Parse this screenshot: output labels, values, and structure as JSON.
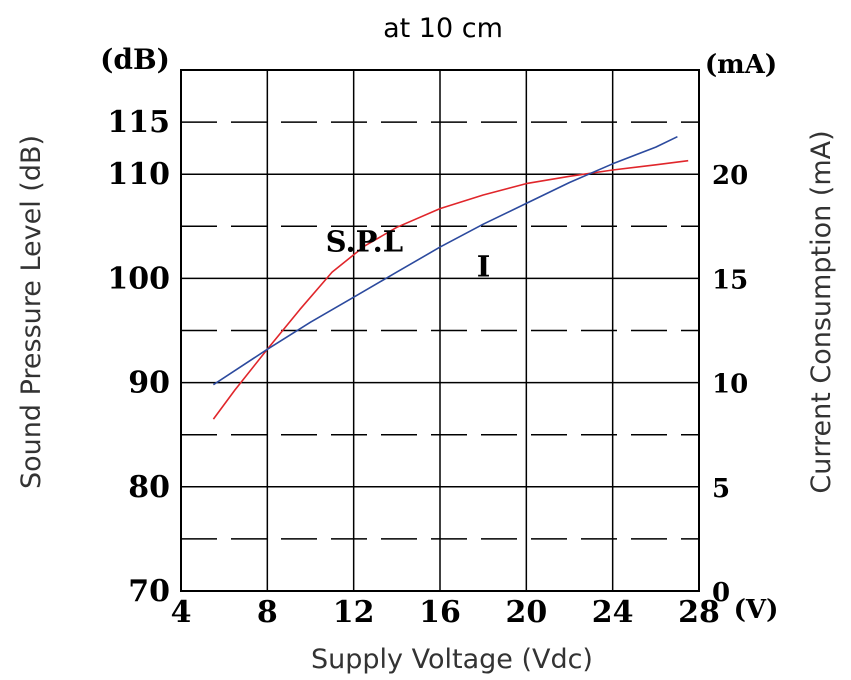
{
  "chart_data": {
    "type": "line",
    "title": "at 10 cm",
    "xlabel": "Supply Voltage (Vdc)",
    "ylabel_left": "Sound Pressure Level (dB)",
    "ylabel_right": "Current Consumption (mA)",
    "unit_left": "(dB)",
    "unit_right": "(mA)",
    "unit_x": "(V)",
    "xlim": [
      4,
      28
    ],
    "xticks": [
      "4",
      "8",
      "12",
      "16",
      "20",
      "24",
      "28"
    ],
    "ylim_left": [
      70,
      120
    ],
    "yticks_left": [
      "70",
      "80",
      "90",
      "100",
      "110",
      "115"
    ],
    "ylim_right": [
      0,
      25
    ],
    "yticks_right": [
      "0",
      "5",
      "10",
      "15",
      "20"
    ],
    "grid": true,
    "series": [
      {
        "name": "S.P.L",
        "axis": "left",
        "color": "#e0262b",
        "x": [
          5.5,
          6.5,
          8,
          9.5,
          11,
          12.5,
          14,
          16,
          18,
          20,
          22,
          24,
          26,
          27.5
        ],
        "y": [
          86.5,
          89.3,
          93.2,
          97.0,
          100.6,
          103.1,
          104.9,
          106.7,
          108.0,
          109.1,
          109.8,
          110.4,
          110.9,
          111.3
        ]
      },
      {
        "name": "I",
        "axis": "right",
        "color": "#2c4a9e",
        "x": [
          5.5,
          8,
          10,
          12,
          14,
          16,
          18,
          20,
          22,
          24,
          26,
          27
        ],
        "y": [
          9.9,
          11.6,
          12.9,
          14.1,
          15.3,
          16.5,
          17.6,
          18.6,
          19.6,
          20.5,
          21.3,
          21.8
        ]
      }
    ]
  }
}
